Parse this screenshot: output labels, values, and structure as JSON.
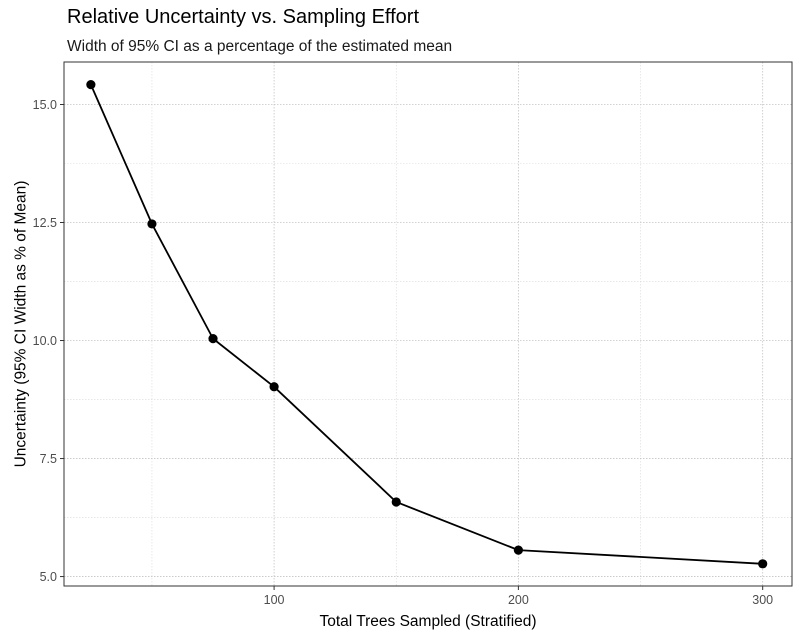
{
  "chart_data": {
    "type": "line",
    "title": "Relative Uncertainty vs. Sampling Effort",
    "subtitle": "Width of 95% CI as a percentage of the estimated mean",
    "xlabel": "Total Trees Sampled (Stratified)",
    "ylabel": "Uncertainty (95% CI Width as % of Mean)",
    "xlim": [
      14,
      312
    ],
    "ylim": [
      4.8,
      15.9
    ],
    "x_ticks": [
      100,
      200,
      300
    ],
    "x_tick_labels": [
      "100",
      "200",
      "300"
    ],
    "x_minor_ticks": [
      50,
      150,
      250
    ],
    "y_ticks": [
      5.0,
      7.5,
      10.0,
      12.5,
      15.0
    ],
    "y_tick_labels": [
      "5.0",
      "7.5",
      "10.0",
      "12.5",
      "15.0"
    ],
    "y_minor_ticks": [
      6.25,
      8.75,
      11.25,
      13.75
    ],
    "grid": true,
    "legend": "none",
    "series": [
      {
        "color": "#000000",
        "x": [
          25,
          50,
          75,
          100,
          150,
          200,
          300
        ],
        "y": [
          15.42,
          12.47,
          10.04,
          9.02,
          6.58,
          5.56,
          5.27
        ]
      }
    ]
  }
}
